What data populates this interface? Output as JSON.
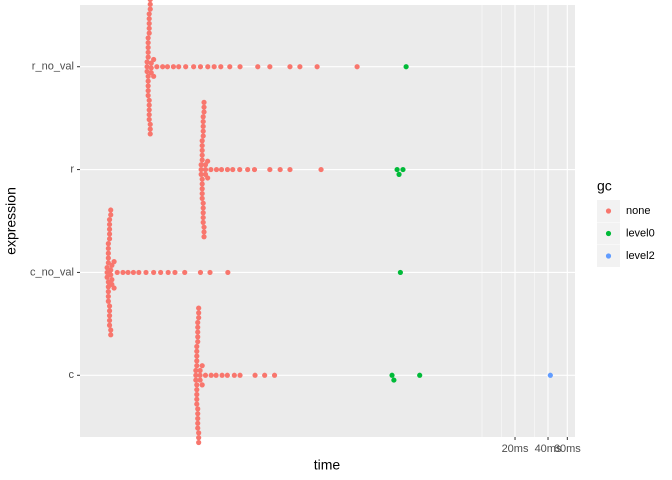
{
  "chart_data": {
    "type": "scatter",
    "xlabel": "time",
    "ylabel": "expression",
    "legend_title": "gc",
    "log_x": true,
    "grid": true,
    "categories": [
      "c",
      "c_no_val",
      "r",
      "r_no_val"
    ],
    "xlim": [
      0.00215,
      70.5
    ],
    "xticks": [
      {
        "value": 20,
        "label": "20ms"
      },
      {
        "value": 40,
        "label": "40ms"
      },
      {
        "value": 60,
        "label": "60ms"
      }
    ],
    "minor_xticks": [
      10,
      15,
      30
    ],
    "series": [
      {
        "name": "none",
        "color": "#F8766D",
        "points": [
          {
            "expression": "r_no_val",
            "x": [
              0.0088,
              0.0088,
              0.0088,
              0.009,
              0.009,
              0.009,
              0.009,
              0.009,
              0.009,
              0.009,
              0.009,
              0.009,
              0.009,
              0.0092,
              0.0092,
              0.0092,
              0.0092,
              0.0092,
              0.0092,
              0.0092,
              0.0092,
              0.0092,
              0.0092,
              0.0094,
              0.0094,
              0.0094,
              0.0094,
              0.0094,
              0.0094,
              0.0096,
              0.0096,
              0.0096,
              0.0101,
              0.0101,
              0.0108,
              0.0122,
              0.0135,
              0.0153,
              0.0171,
              0.0198,
              0.0234,
              0.027,
              0.0315,
              0.036,
              0.0414,
              0.05,
              0.062,
              0.09,
              0.116,
              0.177,
              0.218,
              0.313,
              0.725
            ]
          },
          {
            "expression": "r",
            "x": [
              0.0274,
              0.0274,
              0.0274,
              0.028,
              0.028,
              0.028,
              0.028,
              0.028,
              0.028,
              0.028,
              0.028,
              0.028,
              0.028,
              0.0286,
              0.0286,
              0.0286,
              0.0286,
              0.0286,
              0.0286,
              0.0286,
              0.0286,
              0.0286,
              0.0286,
              0.0291,
              0.0291,
              0.0291,
              0.0291,
              0.0291,
              0.0291,
              0.03,
              0.03,
              0.03,
              0.0314,
              0.0314,
              0.0336,
              0.0378,
              0.042,
              0.0476,
              0.0532,
              0.0616,
              0.0728,
              0.084,
              0.116,
              0.144,
              0.177,
              0.34
            ]
          },
          {
            "expression": "c_no_val",
            "x": [
              0.0038,
              0.0038,
              0.0038,
              0.0039,
              0.0039,
              0.0039,
              0.0039,
              0.0039,
              0.0039,
              0.0039,
              0.0039,
              0.0039,
              0.0039,
              0.004,
              0.004,
              0.004,
              0.004,
              0.004,
              0.004,
              0.004,
              0.004,
              0.004,
              0.004,
              0.0041,
              0.0041,
              0.0041,
              0.0041,
              0.0041,
              0.0041,
              0.0042,
              0.0042,
              0.0042,
              0.0044,
              0.0044,
              0.0047,
              0.0053,
              0.0059,
              0.0066,
              0.0074,
              0.0086,
              0.0101,
              0.0117,
              0.0137,
              0.0158,
              0.0194,
              0.027,
              0.033,
              0.048
            ]
          },
          {
            "expression": "c",
            "x": [
              0.0245,
              0.0245,
              0.0245,
              0.025,
              0.025,
              0.025,
              0.025,
              0.025,
              0.025,
              0.025,
              0.025,
              0.025,
              0.025,
              0.0255,
              0.0255,
              0.0255,
              0.0255,
              0.0255,
              0.0255,
              0.0255,
              0.0255,
              0.0255,
              0.0255,
              0.026,
              0.026,
              0.026,
              0.026,
              0.026,
              0.026,
              0.0268,
              0.0268,
              0.0268,
              0.028,
              0.028,
              0.03,
              0.0338,
              0.0375,
              0.0425,
              0.0475,
              0.055,
              0.062,
              0.085,
              0.104,
              0.128
            ]
          }
        ]
      },
      {
        "name": "level0",
        "color": "#00BA38",
        "points": [
          {
            "expression": "r_no_val",
            "x": [
              2.03
            ]
          },
          {
            "expression": "r",
            "x": [
              1.68,
              1.75,
              1.9
            ]
          },
          {
            "expression": "c_no_val",
            "x": [
              1.8
            ]
          },
          {
            "expression": "c",
            "x": [
              1.51,
              1.57,
              2.7
            ]
          }
        ]
      },
      {
        "name": "level2",
        "color": "#619CFF",
        "points": [
          {
            "expression": "c",
            "x": [
              42
            ]
          }
        ]
      }
    ]
  }
}
